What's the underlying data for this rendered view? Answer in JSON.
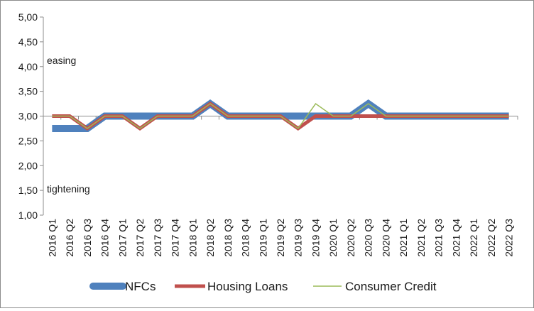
{
  "chart_data": {
    "type": "line",
    "title": "",
    "xlabel": "",
    "ylabel": "",
    "ylim": [
      1.0,
      5.0
    ],
    "y_ticks": [
      "1,00",
      "1,50",
      "2,00",
      "2,50",
      "3,00",
      "3,50",
      "4,00",
      "4,50",
      "5,00"
    ],
    "grid": false,
    "legend_position": "bottom",
    "annotations": {
      "easing": "easing",
      "tightening": "tightening"
    },
    "categories": [
      "2016 Q1",
      "2016 Q2",
      "2016 Q3",
      "2016 Q4",
      "2017 Q1",
      "2017 Q2",
      "2017 Q3",
      "2017 Q4",
      "2018 Q1",
      "2018 Q2",
      "2018 Q3",
      "2018 Q4",
      "2019 Q1",
      "2019 Q2",
      "2019 Q3",
      "2019 Q4",
      "2020 Q1",
      "2020 Q2",
      "2020 Q3",
      "2020 Q4",
      "2021 Q1",
      "2021 Q2",
      "2021 Q3",
      "2021 Q4",
      "2022 Q1",
      "2022 Q2",
      "2022 Q3"
    ],
    "series": [
      {
        "name": "NFCs",
        "color": "#4f81bd",
        "values": [
          2.75,
          2.75,
          2.75,
          3.0,
          3.0,
          3.0,
          3.0,
          3.0,
          3.0,
          3.25,
          3.0,
          3.0,
          3.0,
          3.0,
          3.0,
          3.0,
          3.0,
          3.0,
          3.25,
          3.0,
          3.0,
          3.0,
          3.0,
          3.0,
          3.0,
          3.0,
          3.0
        ]
      },
      {
        "name": "Housing Loans",
        "color": "#c0504d",
        "values": [
          3.0,
          3.0,
          2.75,
          3.0,
          3.0,
          2.75,
          3.0,
          3.0,
          3.0,
          3.25,
          3.0,
          3.0,
          3.0,
          3.0,
          2.75,
          3.0,
          3.0,
          3.0,
          3.0,
          3.0,
          3.0,
          3.0,
          3.0,
          3.0,
          3.0,
          3.0,
          3.0
        ]
      },
      {
        "name": "Consumer Credit",
        "color": "#9bbb59",
        "values": [
          3.0,
          3.0,
          2.75,
          3.0,
          3.0,
          2.75,
          3.0,
          3.0,
          3.0,
          3.25,
          3.0,
          3.0,
          3.0,
          3.0,
          2.75,
          3.25,
          3.0,
          3.0,
          3.25,
          3.0,
          3.0,
          3.0,
          3.0,
          3.0,
          3.0,
          3.0,
          3.0
        ]
      }
    ]
  }
}
